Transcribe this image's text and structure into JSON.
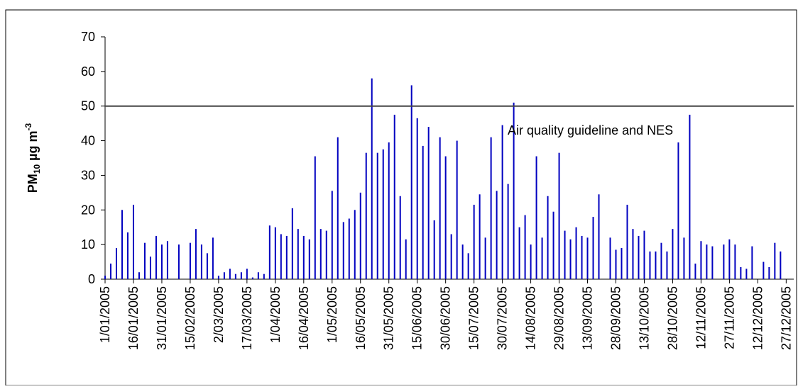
{
  "chart_data": {
    "type": "bar",
    "y_label": [
      "PM",
      "10",
      " µg m",
      "-3"
    ],
    "annotation": "Air quality guideline and NES",
    "hline": 50,
    "color": "#0000c0",
    "x": [
      "1/01/2005",
      "4/01/2005",
      "7/01/2005",
      "10/01/2005",
      "13/01/2005",
      "16/01/2005",
      "19/01/2005",
      "22/01/2005",
      "25/01/2005",
      "28/01/2005",
      "31/01/2005",
      "3/02/2005",
      "6/02/2005",
      "9/02/2005",
      "12/02/2005",
      "15/02/2005",
      "18/02/2005",
      "21/02/2005",
      "24/02/2005",
      "27/02/2005",
      "2/03/2005",
      "5/03/2005",
      "8/03/2005",
      "11/03/2005",
      "14/03/2005",
      "17/03/2005",
      "20/03/2005",
      "23/03/2005",
      "26/03/2005",
      "29/03/2005",
      "1/04/2005",
      "4/04/2005",
      "7/04/2005",
      "10/04/2005",
      "13/04/2005",
      "16/04/2005",
      "19/04/2005",
      "22/04/2005",
      "25/04/2005",
      "28/04/2005",
      "1/05/2005",
      "4/05/2005",
      "7/05/2005",
      "10/05/2005",
      "13/05/2005",
      "16/05/2005",
      "19/05/2005",
      "22/05/2005",
      "25/05/2005",
      "28/05/2005",
      "31/05/2005",
      "3/06/2005",
      "6/06/2005",
      "9/06/2005",
      "12/06/2005",
      "15/06/2005",
      "18/06/2005",
      "21/06/2005",
      "24/06/2005",
      "27/06/2005",
      "30/06/2005",
      "3/07/2005",
      "6/07/2005",
      "9/07/2005",
      "12/07/2005",
      "15/07/2005",
      "18/07/2005",
      "21/07/2005",
      "24/07/2005",
      "27/07/2005",
      "30/07/2005",
      "2/08/2005",
      "5/08/2005",
      "8/08/2005",
      "11/08/2005",
      "14/08/2005",
      "17/08/2005",
      "20/08/2005",
      "23/08/2005",
      "26/08/2005",
      "29/08/2005",
      "1/09/2005",
      "4/09/2005",
      "7/09/2005",
      "10/09/2005",
      "13/09/2005",
      "16/09/2005",
      "19/09/2005",
      "22/09/2005",
      "25/09/2005",
      "28/09/2005",
      "1/10/2005",
      "4/10/2005",
      "7/10/2005",
      "10/10/2005",
      "13/10/2005",
      "16/10/2005",
      "19/10/2005",
      "22/10/2005",
      "25/10/2005",
      "28/10/2005",
      "31/10/2005",
      "3/11/2005",
      "6/11/2005",
      "9/11/2005",
      "12/11/2005",
      "15/11/2005",
      "18/11/2005",
      "21/11/2005",
      "24/11/2005",
      "27/11/2005",
      "30/11/2005",
      "3/12/2005",
      "6/12/2005",
      "9/12/2005",
      "12/12/2005",
      "15/12/2005",
      "18/12/2005",
      "21/12/2005",
      "24/12/2005"
    ],
    "values": [
      1,
      4.5,
      9,
      20,
      13.5,
      21.5,
      2,
      10.5,
      6.5,
      12.5,
      10,
      11,
      null,
      10,
      null,
      10.5,
      14.5,
      10,
      7.5,
      12,
      1,
      2,
      3,
      1.5,
      2,
      3,
      0.5,
      2,
      1.5,
      15.5,
      15,
      13,
      12.5,
      20.5,
      14.5,
      12.5,
      11.5,
      35.5,
      14.5,
      14,
      25.5,
      41,
      16.5,
      17.5,
      20,
      25,
      36.5,
      58,
      36.5,
      37.5,
      39.5,
      47.5,
      24,
      11.5,
      56,
      46.5,
      38.5,
      44,
      17,
      41,
      35.5,
      13,
      40,
      10,
      7.5,
      21.5,
      24.5,
      12,
      41,
      25.5,
      44.5,
      27.5,
      51,
      15,
      18.5,
      10,
      35.5,
      12,
      24,
      19.5,
      36.5,
      14,
      11.5,
      15,
      12.5,
      12,
      18,
      24.5,
      null,
      12,
      8.5,
      9,
      21.5,
      14.5,
      12.5,
      14,
      8,
      8,
      10.5,
      8,
      14.5,
      39.5,
      12,
      47.5,
      4.5,
      11,
      10,
      9.5,
      null,
      10,
      11.5,
      10,
      3.5,
      3,
      9.5,
      null,
      5,
      3.5,
      10.5,
      8
    ],
    "xlim": [
      "1/01/2005",
      "31/12/2005"
    ],
    "xticks": [
      "1/01/2005",
      "16/01/2005",
      "31/01/2005",
      "15/02/2005",
      "2/03/2005",
      "17/03/2005",
      "1/04/2005",
      "16/04/2005",
      "1/05/2005",
      "16/05/2005",
      "31/05/2005",
      "15/06/2005",
      "30/06/2005",
      "15/07/2005",
      "30/07/2005",
      "14/08/2005",
      "29/08/2005",
      "13/09/2005",
      "28/09/2005",
      "13/10/2005",
      "28/10/2005",
      "12/11/2005",
      "27/11/2005",
      "12/12/2005",
      "27/12/2005"
    ],
    "ylim": [
      0,
      70
    ],
    "yticks": [
      0,
      10,
      20,
      30,
      40,
      50,
      60,
      70
    ],
    "grid": false
  }
}
